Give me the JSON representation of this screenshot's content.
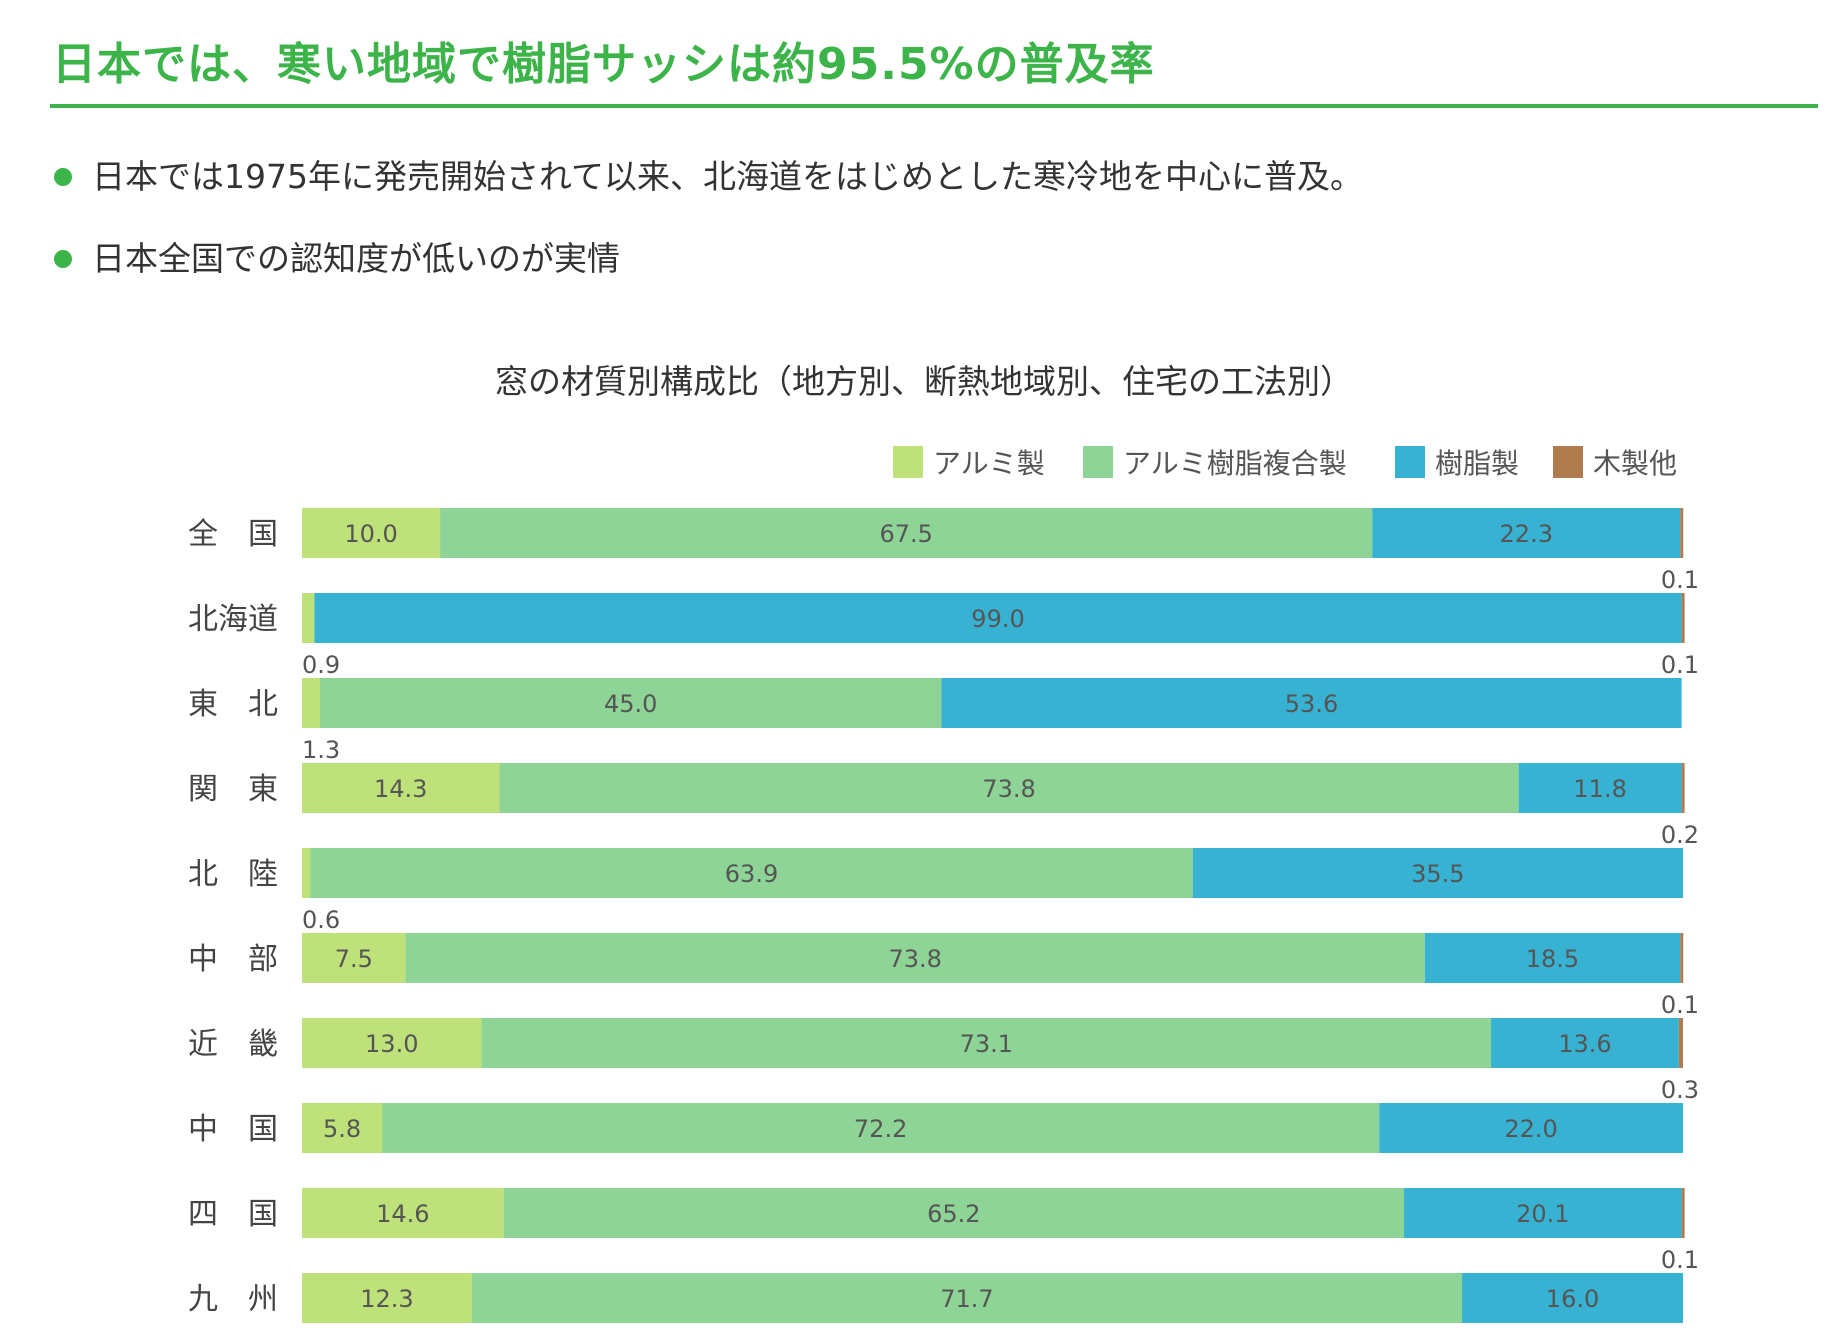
{
  "header": {
    "title": "日本では、寒い地域で樹脂サッシは約95.5%の普及率"
  },
  "bullets": [
    "日本では1975年に発売開始されて以来、北海道をはじめとした寒冷地を中心に普及。",
    "日本全国での認知度が低いのが実情"
  ],
  "colors": {
    "accent": "#3cb44a",
    "aluminum": "#bfe17a",
    "composite": "#8dd496",
    "resin": "#37b2d2",
    "wood": "#b07b4e"
  },
  "chart_data": {
    "type": "bar",
    "orientation": "horizontal",
    "stacked": true,
    "title": "窓の材質別構成比（地方別、断熱地域別、住宅の工法別）",
    "xlim": [
      0,
      100
    ],
    "legend_position": "top-right",
    "categories": [
      "全　国",
      "北海道",
      "東　北",
      "関　東",
      "北　陸",
      "中　部",
      "近　畿",
      "中　国",
      "四　国",
      "九　州"
    ],
    "series": [
      {
        "name": "アルミ製",
        "color": "#bfe17a",
        "values": [
          10.0,
          0.9,
          1.3,
          14.3,
          0.6,
          7.5,
          13.0,
          5.8,
          14.6,
          12.3
        ],
        "labels": [
          "10.0",
          "0.9",
          "1.3",
          "14.3",
          "0.6",
          "7.5",
          "13.0",
          "5.8",
          "14.6",
          "12.3"
        ]
      },
      {
        "name": "アルミ樹脂複合製",
        "color": "#8dd496",
        "values": [
          67.5,
          0,
          45.0,
          73.8,
          63.9,
          73.8,
          73.1,
          72.2,
          65.2,
          71.7
        ],
        "labels": [
          "67.5",
          "",
          "45.0",
          "73.8",
          "63.9",
          "73.8",
          "73.1",
          "72.2",
          "65.2",
          "71.7"
        ]
      },
      {
        "name": "樹脂製",
        "color": "#37b2d2",
        "values": [
          22.3,
          99.0,
          53.6,
          11.8,
          35.5,
          18.5,
          13.6,
          22.0,
          20.1,
          16.0
        ],
        "labels": [
          "22.3",
          "99.0",
          "53.6",
          "11.8",
          "35.5",
          "18.5",
          "13.6",
          "22.0",
          "20.1",
          "16.0"
        ]
      },
      {
        "name": "木製他",
        "color": "#b07b4e",
        "values": [
          0.1,
          0.1,
          0,
          0.2,
          0,
          0.1,
          0.3,
          0,
          0.1,
          0
        ],
        "labels": [
          "0.1",
          "0.1",
          "",
          "0.2",
          "",
          "0.1",
          "0.3",
          "",
          "0.1",
          ""
        ]
      }
    ]
  }
}
